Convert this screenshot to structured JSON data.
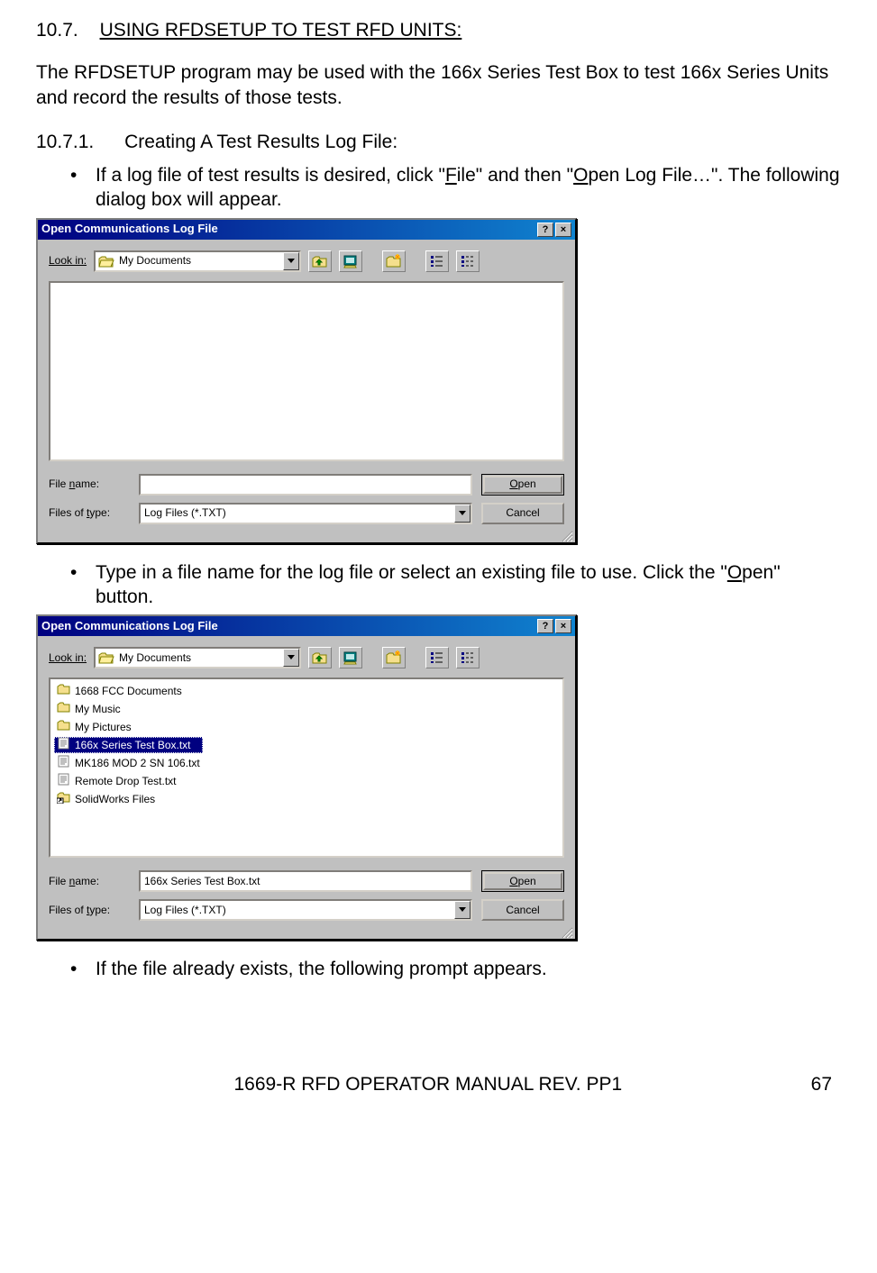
{
  "section": {
    "number": "10.7.",
    "title": "USING RFDSETUP TO TEST RFD UNITS:"
  },
  "intro": "The RFDSETUP program may be used with the 166x Series Test Box to test 166x Series Units and record the results of those tests.",
  "subsection": {
    "number": "10.7.1.",
    "title": "Creating A Test Results Log File:"
  },
  "bullet1": {
    "pre": "If a log file of test results is desired, click \"",
    "u1": "F",
    "mid1": "ile\" and then \"",
    "u2": "O",
    "post": "pen Log File…\".  The following dialog box will appear."
  },
  "bullet2": {
    "pre": "Type in a file name for the log file or select an existing file to use.  Click the \"",
    "u1": "O",
    "post": "pen\" button."
  },
  "bullet3": "If the file already exists, the following prompt appears.",
  "dialog_shared": {
    "title": "Open Communications Log File",
    "lookin_label": "Look in:",
    "lookin_value": "My Documents",
    "filename_label": "File name:",
    "filename_u": "n",
    "filetype_label": "Files of type:",
    "filetype_u": "t",
    "filetype_value": "Log Files (*.TXT)",
    "open_label": "Open",
    "open_u": "O",
    "cancel_label": "Cancel",
    "help_btn": "?",
    "close_btn": "×"
  },
  "dialog1": {
    "filename_value": ""
  },
  "dialog2": {
    "filename_value": "166x Series Test Box.txt",
    "files": [
      {
        "name": "1668 FCC Documents",
        "type": "folder"
      },
      {
        "name": "My Music",
        "type": "folder"
      },
      {
        "name": "My Pictures",
        "type": "folder"
      },
      {
        "name": "166x Series Test Box.txt",
        "type": "txt",
        "selected": true
      },
      {
        "name": "MK186 MOD 2 SN 106.txt",
        "type": "txt"
      },
      {
        "name": "Remote Drop Test.txt",
        "type": "txt"
      },
      {
        "name": "SolidWorks Files",
        "type": "shortcut"
      }
    ]
  },
  "footer": {
    "doc": "1669-R RFD OPERATOR MANUAL REV. PP1",
    "page": "67"
  },
  "colors": {
    "titlebar_start": "#000080",
    "titlebar_end": "#1084d0",
    "win_bg": "#c0c0c0",
    "text": "#000000",
    "white": "#ffffff",
    "folder_fill": "#f5df8d",
    "folder_stroke": "#808000",
    "selection": "#000080"
  }
}
